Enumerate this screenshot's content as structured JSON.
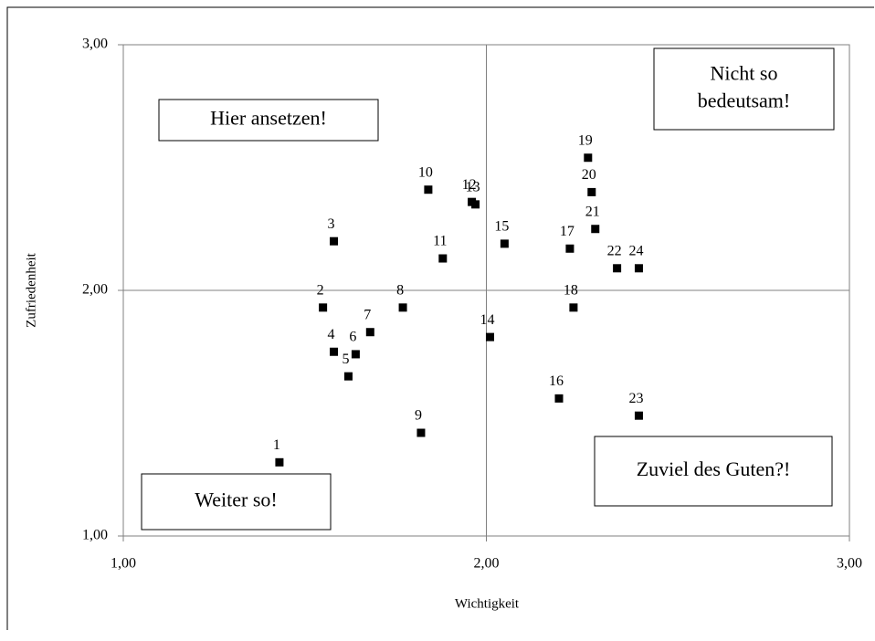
{
  "chart_data": {
    "type": "scatter",
    "x_label": "Wichtigkeit",
    "y_label": "Zufriedenheit",
    "x": [
      1.43,
      1.55,
      1.58,
      1.58,
      1.62,
      1.64,
      1.68,
      1.77,
      1.82,
      1.84,
      1.88,
      1.96,
      1.97,
      2.01,
      2.05,
      2.2,
      2.23,
      2.24,
      2.28,
      2.29,
      2.3,
      2.36,
      2.42,
      2.42
    ],
    "values": [
      1.3,
      1.93,
      2.2,
      1.75,
      1.65,
      1.74,
      1.83,
      1.93,
      1.42,
      2.41,
      2.13,
      2.36,
      2.35,
      1.81,
      2.19,
      1.56,
      2.17,
      1.93,
      2.54,
      2.4,
      2.25,
      2.09,
      1.49,
      2.09
    ],
    "point_labels": [
      "1",
      "2",
      "3",
      "4",
      "5",
      "6",
      "7",
      "8",
      "9",
      "10",
      "11",
      "12",
      "13",
      "14",
      "15",
      "16",
      "17",
      "18",
      "19",
      "20",
      "21",
      "22",
      "23",
      "24"
    ],
    "color": "#000000",
    "xlim": [
      1,
      3
    ],
    "ylim": [
      1,
      3
    ],
    "xticks": [
      {
        "value": 1,
        "label": "1,00"
      },
      {
        "value": 2,
        "label": "2,00"
      },
      {
        "value": 3,
        "label": "3,00"
      }
    ],
    "yticks": [
      {
        "value": 1,
        "label": "1,00"
      },
      {
        "value": 2,
        "label": "2,00"
      },
      {
        "value": 3,
        "label": "3,00"
      }
    ],
    "grid": true,
    "annotations": [
      {
        "lines": [
          "Hier ansetzen!"
        ]
      },
      {
        "lines": [
          "Nicht so",
          "bedeutsam!"
        ]
      },
      {
        "lines": [
          "Zuviel des Guten?!"
        ]
      },
      {
        "lines": [
          "Weiter so!"
        ]
      }
    ]
  }
}
